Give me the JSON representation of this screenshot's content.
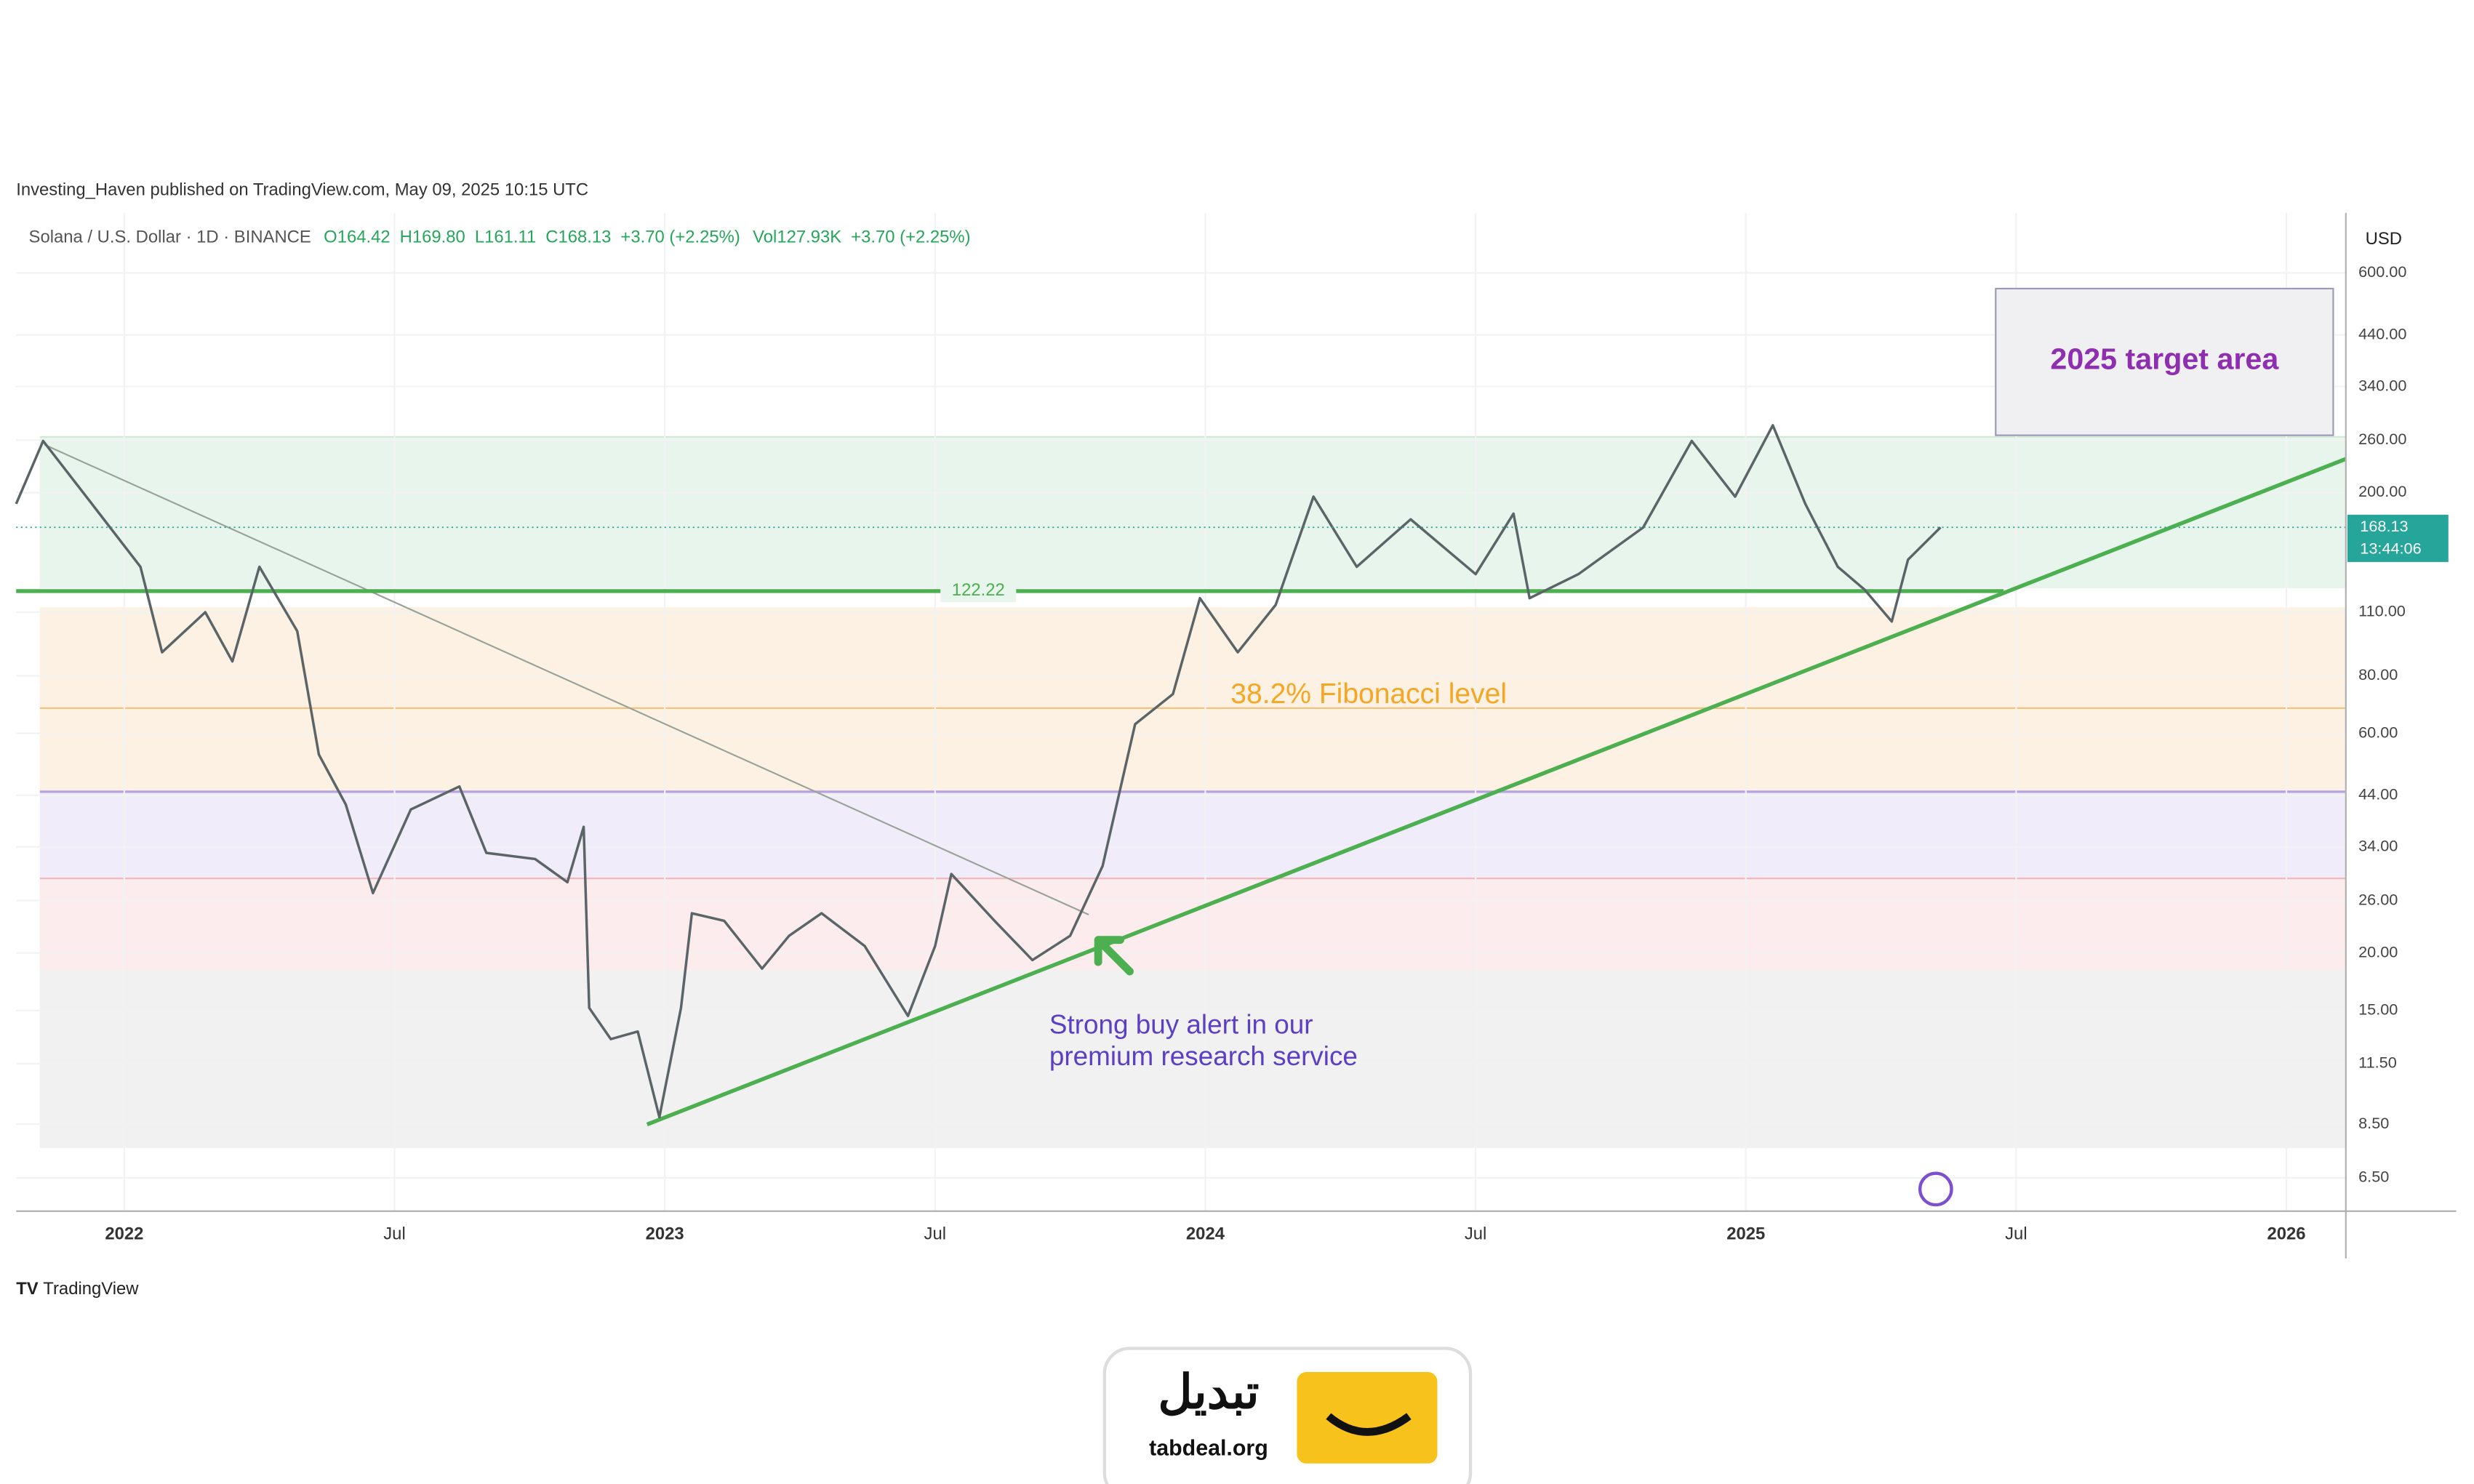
{
  "chart_data": {
    "type": "line",
    "title": "Investing_Haven published on TradingView.com, May 09, 2025 10:15 UTC",
    "subtitle": "Solana / U.S. Dollar · 1D · BINANCE",
    "legend_text": [
      "O164.42",
      "H169.80",
      "L161.11",
      "C168.13",
      "+3.70 (+2.25%)",
      "Vol127.93K",
      "+3.70 (+2.25%)"
    ],
    "currency": "USD",
    "log_scale": true,
    "x": [
      2021.8,
      2021.85,
      2021.94,
      2022.03,
      2022.07,
      2022.15,
      2022.2,
      2022.25,
      2022.32,
      2022.36,
      2022.41,
      2022.46,
      2022.53,
      2022.62,
      2022.67,
      2022.76,
      2022.82,
      2022.85,
      2022.86,
      2022.9,
      2022.95,
      2022.99,
      2023.03,
      2023.05,
      2023.11,
      2023.18,
      2023.23,
      2023.29,
      2023.37,
      2023.45,
      2023.5,
      2023.53,
      2023.61,
      2023.68,
      2023.75,
      2023.81,
      2023.87,
      2023.94,
      2023.99,
      2024.06,
      2024.13,
      2024.2,
      2024.28,
      2024.38,
      2024.5,
      2024.57,
      2024.6,
      2024.69,
      2024.81,
      2024.9,
      2024.98,
      2025.05,
      2025.11,
      2025.17,
      2025.22,
      2025.27,
      2025.3,
      2025.36
    ],
    "series": [
      {
        "name": "Solana / U.S. Dollar",
        "color": "#5b6466",
        "values": [
          189,
          259,
          189,
          138,
          90,
          110,
          86,
          138,
          100,
          54,
          42,
          27,
          41,
          46,
          33,
          32,
          28.5,
          37.6,
          15.2,
          13,
          13.5,
          8.8,
          15.2,
          24.4,
          23.5,
          18.5,
          21.8,
          24.4,
          20.7,
          14.6,
          20.7,
          29.7,
          23.5,
          19.3,
          21.8,
          30.9,
          62.8,
          73,
          118,
          90,
          114,
          196,
          138,
          175,
          133,
          180,
          118,
          133,
          168,
          259,
          196,
          280,
          189,
          138,
          123,
          105,
          143,
          168.13
        ]
      }
    ],
    "xlim": [
      2021.8,
      2026.11
    ],
    "xticks": [
      {
        "value": 2022,
        "label": "2022"
      },
      {
        "value": 2022.5,
        "label": "Jul"
      },
      {
        "value": 2023,
        "label": "2023"
      },
      {
        "value": 2023.5,
        "label": "Jul"
      },
      {
        "value": 2024,
        "label": "2024"
      },
      {
        "value": 2024.5,
        "label": "Jul"
      },
      {
        "value": 2025,
        "label": "2025"
      },
      {
        "value": 2025.5,
        "label": "Jul"
      },
      {
        "value": 2026,
        "label": "2026"
      }
    ],
    "ylim": [
      5.5,
      810
    ],
    "yticks": [
      {
        "value": 6.5,
        "label": "6.50"
      },
      {
        "value": 8.5,
        "label": "8.50"
      },
      {
        "value": 11.5,
        "label": "11.50"
      },
      {
        "value": 15,
        "label": "15.00"
      },
      {
        "value": 20,
        "label": "20.00"
      },
      {
        "value": 26,
        "label": "26.00"
      },
      {
        "value": 34,
        "label": "34.00"
      },
      {
        "value": 44,
        "label": "44.00"
      },
      {
        "value": 60,
        "label": "60.00"
      },
      {
        "value": 80,
        "label": "80.00"
      },
      {
        "value": 110,
        "label": "110.00"
      },
      {
        "value": 200,
        "label": "200.00"
      },
      {
        "value": 260,
        "label": "260.00"
      },
      {
        "value": 340,
        "label": "340.00"
      },
      {
        "value": 440,
        "label": "440.00"
      },
      {
        "value": 600,
        "label": "600.00"
      }
    ],
    "level_line": {
      "value": 122.22,
      "color": "#4caf50"
    },
    "last_price": 168.13,
    "countdown": "13:44:06",
    "annotations": {
      "target": "2025 target area",
      "fibonacci": "38.2% Fibonacci level",
      "buy": [
        "Strong buy alert in our",
        "premium research service"
      ]
    },
    "logo": "TradingView"
  },
  "footer": {
    "brand": "تبدیل",
    "site": "tabdeal.org"
  }
}
